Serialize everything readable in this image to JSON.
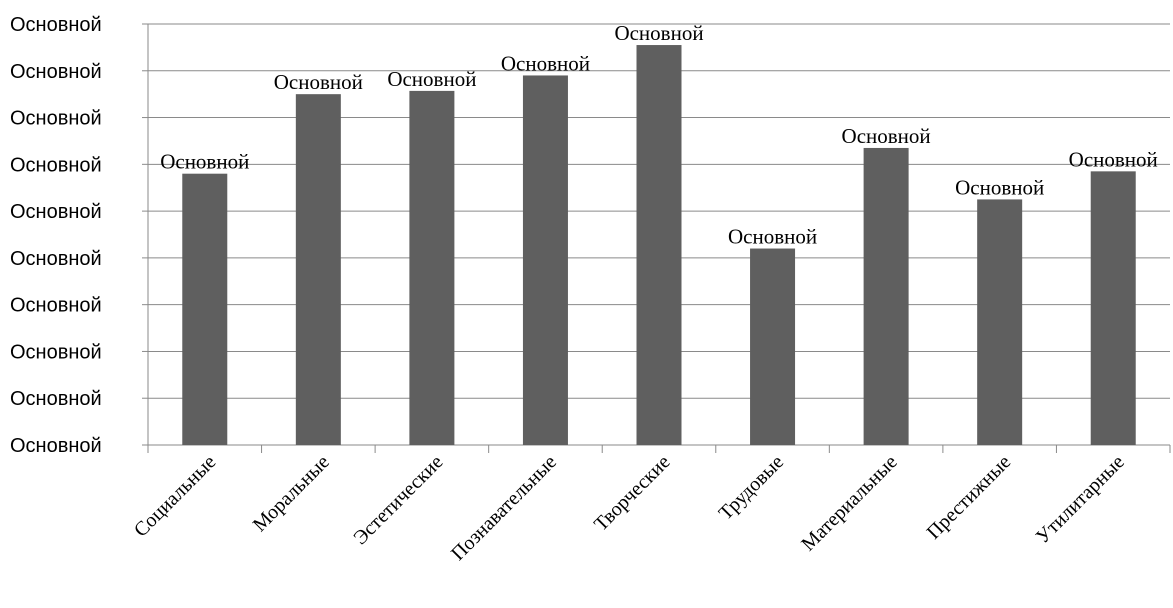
{
  "chart_data": {
    "type": "bar",
    "title": "",
    "xlabel": "",
    "ylabel": "",
    "categories": [
      "Социальные",
      "Моральные",
      "Эстетические",
      "Познавательные",
      "Творческие",
      "Трудовые",
      "Материальные",
      "Престижные",
      "Утилитарные"
    ],
    "values": [
      5.8,
      7.5,
      7.57,
      7.9,
      8.55,
      4.2,
      6.35,
      5.25,
      5.85
    ],
    "data_labels": [
      "Основной",
      "Основной",
      "Основной",
      "Основной",
      "Основной",
      "Основной",
      "Основной",
      "Основной",
      "Основной"
    ],
    "y_tick_labels": [
      "Основной",
      "Основной",
      "Основной",
      "Основной",
      "Основной",
      "Основной",
      "Основной",
      "Основной",
      "Основной",
      "Основной"
    ],
    "ylim": [
      0,
      9
    ],
    "grid": true,
    "legend": "none",
    "bar_color": "#5f5f5f",
    "grid_color": "#8a8a8a"
  }
}
